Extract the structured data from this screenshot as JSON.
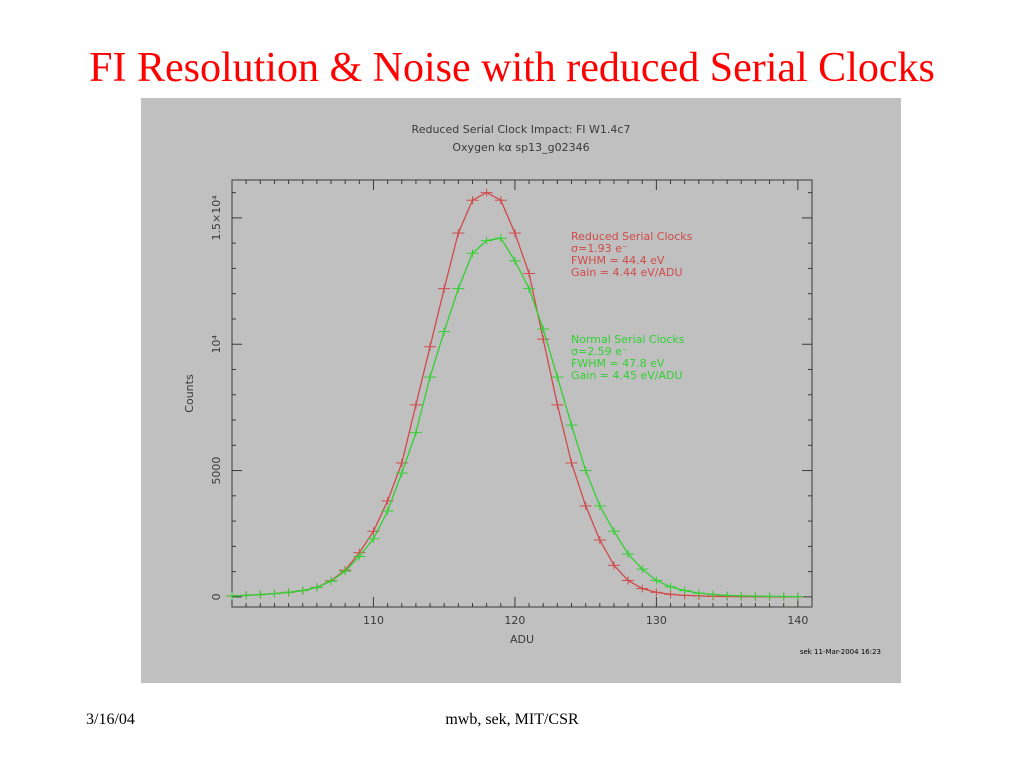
{
  "slide": {
    "title": "FI Resolution & Noise with reduced Serial Clocks",
    "footer_date": "3/16/04",
    "footer_credit": "mwb, sek, MIT/CSR"
  },
  "colors": {
    "title": "#ff0000",
    "panel": "#c0c0c0",
    "axis": "#3a3a3a",
    "reduced": "#d04a4a",
    "normal": "#32d032"
  },
  "chart_data": {
    "type": "line",
    "title": "Reduced Serial Clock Impact: FI W1.4c7",
    "subtitle": "Oxygen kα sp13_g02346",
    "xlabel": "ADU",
    "ylabel": "Counts",
    "xlim": [
      100,
      141
    ],
    "ylim": [
      -400,
      16500
    ],
    "x_ticks": [
      110,
      120,
      130,
      140
    ],
    "x_tick_labels": [
      "110",
      "120",
      "130",
      "140"
    ],
    "y_ticks": [
      0,
      5000,
      10000,
      15000
    ],
    "y_tick_labels": [
      "0",
      "5000",
      "10⁴",
      "1.5×10⁴"
    ],
    "grid": false,
    "stamp": "sek 11-Mar-2004 16:23",
    "x": [
      100,
      101,
      102,
      103,
      104,
      105,
      106,
      107,
      108,
      109,
      110,
      111,
      112,
      113,
      114,
      115,
      116,
      117,
      118,
      119,
      120,
      121,
      122,
      123,
      124,
      125,
      126,
      127,
      128,
      129,
      130,
      131,
      132,
      133,
      134,
      135,
      136,
      137,
      138,
      139,
      140
    ],
    "series": [
      {
        "name": "Reduced Serial Clocks",
        "color": "#d04a4a",
        "annotations": [
          "Reduced Serial Clocks",
          "σ=1.93 e⁻",
          "FWHM = 44.4 eV",
          "Gain = 4.44 eV/ADU"
        ],
        "values": [
          40,
          60,
          90,
          130,
          180,
          250,
          380,
          640,
          1060,
          1750,
          2600,
          3800,
          5300,
          7600,
          9900,
          12200,
          14400,
          15700,
          16000,
          15700,
          14400,
          12800,
          10200,
          7600,
          5300,
          3600,
          2250,
          1250,
          650,
          330,
          180,
          100,
          60,
          40,
          25,
          15,
          10,
          8,
          6,
          5,
          4
        ]
      },
      {
        "name": "Normal Serial Clocks",
        "color": "#32d032",
        "annotations": [
          "Normal Serial Clocks",
          "σ=2.59 e⁻",
          "FWHM = 47.8 eV",
          "Gain = 4.45 eV/ADU"
        ],
        "values": [
          40,
          60,
          90,
          130,
          180,
          250,
          370,
          620,
          1020,
          1600,
          2300,
          3400,
          4900,
          6500,
          8700,
          10500,
          12200,
          13600,
          14100,
          14200,
          13300,
          12200,
          10600,
          8700,
          6800,
          5000,
          3600,
          2600,
          1700,
          1100,
          650,
          400,
          250,
          150,
          100,
          60,
          40,
          30,
          20,
          15,
          10
        ]
      }
    ]
  }
}
